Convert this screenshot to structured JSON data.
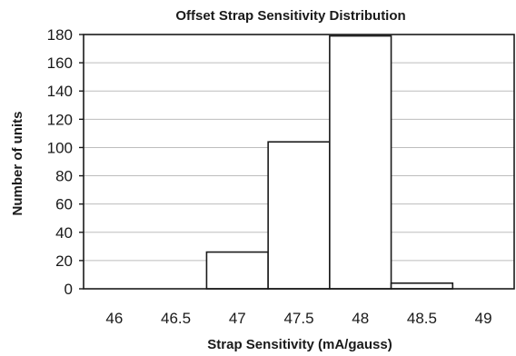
{
  "chart_data": {
    "type": "bar",
    "title": "Offset Strap Sensitivity Distribution",
    "xlabel": "Strap Sensitivity  (mA/gauss)",
    "ylabel": "Number of units",
    "x_ticks": [
      "46",
      "46.5",
      "47",
      "47.5",
      "48",
      "48.5",
      "49"
    ],
    "y_ticks": [
      "0",
      "20",
      "40",
      "60",
      "80",
      "100",
      "120",
      "140",
      "160",
      "180"
    ],
    "ylim": [
      0,
      180
    ],
    "xlim": [
      45.75,
      49.25
    ],
    "bin_width": 0.5,
    "bins": [
      {
        "x": 46.0,
        "value": 0
      },
      {
        "x": 46.5,
        "value": 0
      },
      {
        "x": 47.0,
        "value": 26
      },
      {
        "x": 47.5,
        "value": 104
      },
      {
        "x": 48.0,
        "value": 179
      },
      {
        "x": 48.5,
        "value": 4
      },
      {
        "x": 49.0,
        "value": 0
      }
    ],
    "grid": true,
    "legend": "none",
    "colors": {
      "bar_fill": "#ffffff",
      "bar_stroke": "#1a1a1a",
      "grid": "#bdbdbd"
    }
  }
}
